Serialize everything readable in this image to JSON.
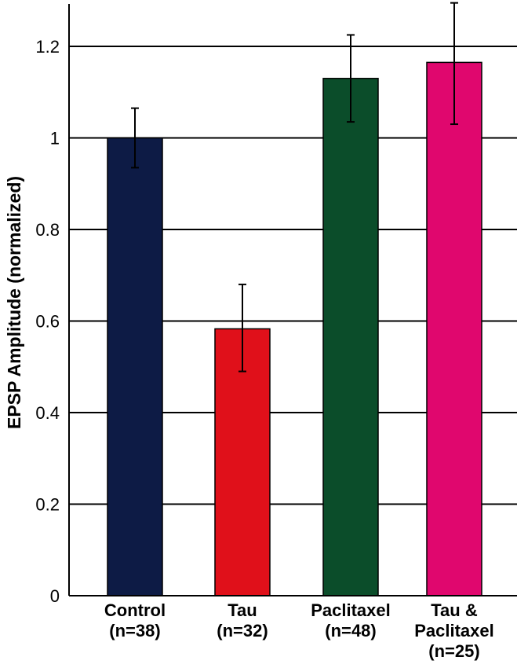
{
  "chart_data": {
    "type": "bar",
    "title": "",
    "xlabel": "",
    "ylabel": "EPSP Amplitude (normalized)",
    "ylim": [
      0,
      1.3
    ],
    "yticks": [
      0,
      0.2,
      0.4,
      0.6,
      0.8,
      1,
      1.2
    ],
    "ytick_labels": [
      "0",
      "0.2",
      "0.4",
      "0.6",
      "0.8",
      "1",
      "1.2"
    ],
    "grid": true,
    "categories": [
      [
        "Control",
        "(n=38)"
      ],
      [
        "Tau",
        "(n=32)"
      ],
      [
        "Paclitaxel",
        "(n=48)"
      ],
      [
        "Tau &",
        "Paclitaxel",
        "(n=25)"
      ]
    ],
    "values": [
      1.0,
      0.583,
      1.13,
      1.165
    ],
    "error_low": [
      0.935,
      0.49,
      1.035,
      1.03
    ],
    "error_high": [
      1.065,
      0.68,
      1.225,
      1.295
    ],
    "colors": [
      "#0d1b45",
      "#e0101a",
      "#0b4d2a",
      "#e0076e"
    ]
  }
}
